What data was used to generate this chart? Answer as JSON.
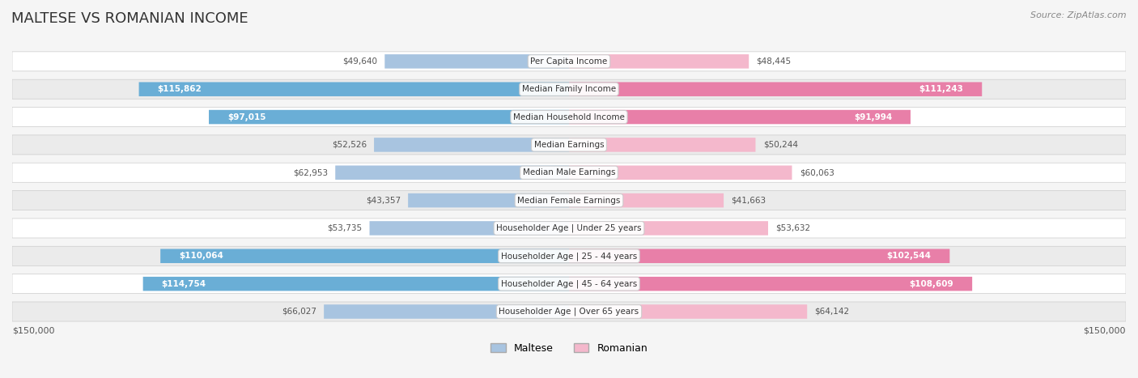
{
  "title": "MALTESE VS ROMANIAN INCOME",
  "source": "Source: ZipAtlas.com",
  "categories": [
    "Per Capita Income",
    "Median Family Income",
    "Median Household Income",
    "Median Earnings",
    "Median Male Earnings",
    "Median Female Earnings",
    "Householder Age | Under 25 years",
    "Householder Age | 25 - 44 years",
    "Householder Age | 45 - 64 years",
    "Householder Age | Over 65 years"
  ],
  "maltese_values": [
    49640,
    115862,
    97015,
    52526,
    62953,
    43357,
    53735,
    110064,
    114754,
    66027
  ],
  "romanian_values": [
    48445,
    111243,
    91994,
    50244,
    60063,
    41663,
    53632,
    102544,
    108609,
    64142
  ],
  "maltese_labels": [
    "$49,640",
    "$115,862",
    "$97,015",
    "$52,526",
    "$62,953",
    "$43,357",
    "$53,735",
    "$110,064",
    "$114,754",
    "$66,027"
  ],
  "romanian_labels": [
    "$48,445",
    "$111,243",
    "$91,994",
    "$50,244",
    "$60,063",
    "$41,663",
    "$53,632",
    "$102,544",
    "$108,609",
    "$64,142"
  ],
  "maltese_color_light": "#a8c4e0",
  "maltese_color_dark": "#6aaed6",
  "romanian_color_light": "#f4b8cc",
  "romanian_color_dark": "#e87fa8",
  "max_value": 150000,
  "bg_color": "#f5f5f5",
  "row_bg_light": "#ffffff",
  "row_bg_dark": "#ebebeb",
  "label_color_inside": "#ffffff",
  "label_color_outside": "#555555",
  "inside_threshold": 80000,
  "legend_maltese": "Maltese",
  "legend_romanian": "Romanian",
  "xlabel_left": "$150,000",
  "xlabel_right": "$150,000"
}
